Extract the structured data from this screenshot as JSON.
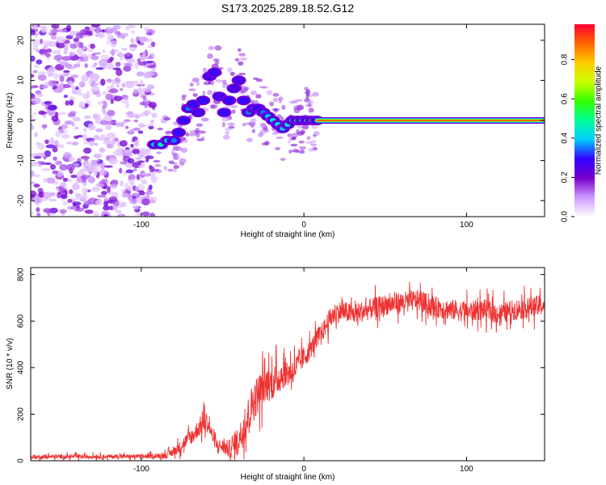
{
  "page": {
    "title": "S173.2025.289.18.52.G12"
  },
  "chart_data": [
    {
      "type": "heatmap",
      "title": "S173.2025.289.18.52.G12",
      "xlabel": "Height of straight line (km)",
      "ylabel": "Frequency (Hz)",
      "xlim": [
        -168,
        148
      ],
      "ylim": [
        -24,
        24
      ],
      "x_ticks": [
        -100,
        0,
        100
      ],
      "x_tick_labels": [
        "-100",
        "0",
        "100"
      ],
      "y_ticks": [
        -20,
        -10,
        0,
        10,
        20
      ],
      "y_tick_labels": [
        "-20",
        "-10",
        "0",
        "10",
        "20"
      ],
      "noise_region": {
        "x_range": [
          -168,
          -92
        ],
        "y_range": [
          -24,
          24
        ],
        "amplitude_range": [
          0.05,
          0.25
        ]
      },
      "signal_track": {
        "x": [
          -92,
          -88,
          -84,
          -80,
          -77,
          -74,
          -71,
          -68,
          -65,
          -62,
          -58,
          -55,
          -52,
          -49,
          -46,
          -43,
          -40,
          -37,
          -34,
          -31,
          -28,
          -25,
          -22,
          -19,
          -16,
          -13,
          -10,
          -7,
          -4,
          -1,
          2,
          5,
          8
        ],
        "frequency": [
          -6,
          -6,
          -5,
          -5,
          -3,
          0,
          3,
          4,
          2,
          5,
          11,
          12,
          6,
          2,
          5,
          8,
          10,
          5,
          2,
          3,
          3,
          2,
          1,
          0,
          -1,
          -2,
          -1,
          0,
          0,
          0,
          0,
          0,
          0
        ],
        "amplitude": [
          0.4,
          0.45,
          0.4,
          0.35,
          0.3,
          0.3,
          0.35,
          0.3,
          0.25,
          0.3,
          0.25,
          0.3,
          0.25,
          0.3,
          0.3,
          0.25,
          0.25,
          0.3,
          0.35,
          0.35,
          0.3,
          0.35,
          0.4,
          0.45,
          0.45,
          0.4,
          0.45,
          0.5,
          0.55,
          0.5,
          0.55,
          0.6,
          0.6
        ]
      },
      "carrier_line": {
        "x_range": [
          8,
          148
        ],
        "frequency": 0,
        "amplitude": 0.9
      },
      "colorbar": {
        "label": "Normalized spectral amplitude",
        "range": [
          0,
          0.98
        ],
        "ticks": [
          0.0,
          0.2,
          0.4,
          0.6,
          0.8
        ],
        "tick_labels": [
          "0.0",
          "0.2",
          "0.4",
          "0.6",
          "0.8"
        ],
        "colors": [
          "#ffffff",
          "#cc99ff",
          "#7a00cc",
          "#3300ff",
          "#00ccff",
          "#00ff99",
          "#33ff00",
          "#ccff00",
          "#ffcc00",
          "#ff6600",
          "#ff0033"
        ]
      }
    },
    {
      "type": "line",
      "xlabel": "Height of straight line (km)",
      "ylabel": "SNR (10 * v/v)",
      "xlim": [
        -168,
        148
      ],
      "ylim": [
        0,
        830
      ],
      "x_ticks": [
        -100,
        0,
        100
      ],
      "x_tick_labels": [
        "-100",
        "0",
        "100"
      ],
      "y_ticks": [
        0,
        200,
        400,
        600,
        800
      ],
      "y_tick_labels": [
        "0",
        "200",
        "400",
        "600",
        "800"
      ],
      "series": [
        {
          "name": "SNR",
          "color": "#ee3333",
          "x": [
            -168,
            -150,
            -130,
            -110,
            -90,
            -84,
            -80,
            -76,
            -72,
            -68,
            -65,
            -62,
            -60,
            -58,
            -56,
            -54,
            -50,
            -46,
            -42,
            -38,
            -35,
            -32,
            -28,
            -25,
            -22,
            -18,
            -15,
            -12,
            -8,
            -5,
            -2,
            2,
            5,
            8,
            12,
            15,
            20,
            25,
            30,
            40,
            50,
            60,
            70,
            80,
            90,
            100,
            110,
            120,
            130,
            140,
            148
          ],
          "value": [
            15,
            18,
            18,
            18,
            20,
            25,
            40,
            60,
            90,
            110,
            140,
            160,
            170,
            140,
            100,
            70,
            60,
            50,
            70,
            120,
            180,
            240,
            290,
            320,
            330,
            340,
            360,
            380,
            380,
            400,
            430,
            460,
            490,
            530,
            560,
            600,
            640,
            640,
            630,
            650,
            670,
            680,
            690,
            660,
            650,
            640,
            650,
            630,
            650,
            660,
            670
          ],
          "noise": [
            18,
            18,
            18,
            18,
            20,
            30,
            40,
            50,
            60,
            70,
            80,
            90,
            90,
            70,
            60,
            50,
            60,
            80,
            110,
            140,
            160,
            170,
            170,
            160,
            150,
            150,
            140,
            130,
            120,
            110,
            100,
            90,
            80,
            80,
            80,
            90,
            90,
            90,
            90,
            90,
            90,
            90,
            90,
            90,
            90,
            90,
            90,
            90,
            90,
            90,
            90
          ]
        }
      ]
    }
  ]
}
